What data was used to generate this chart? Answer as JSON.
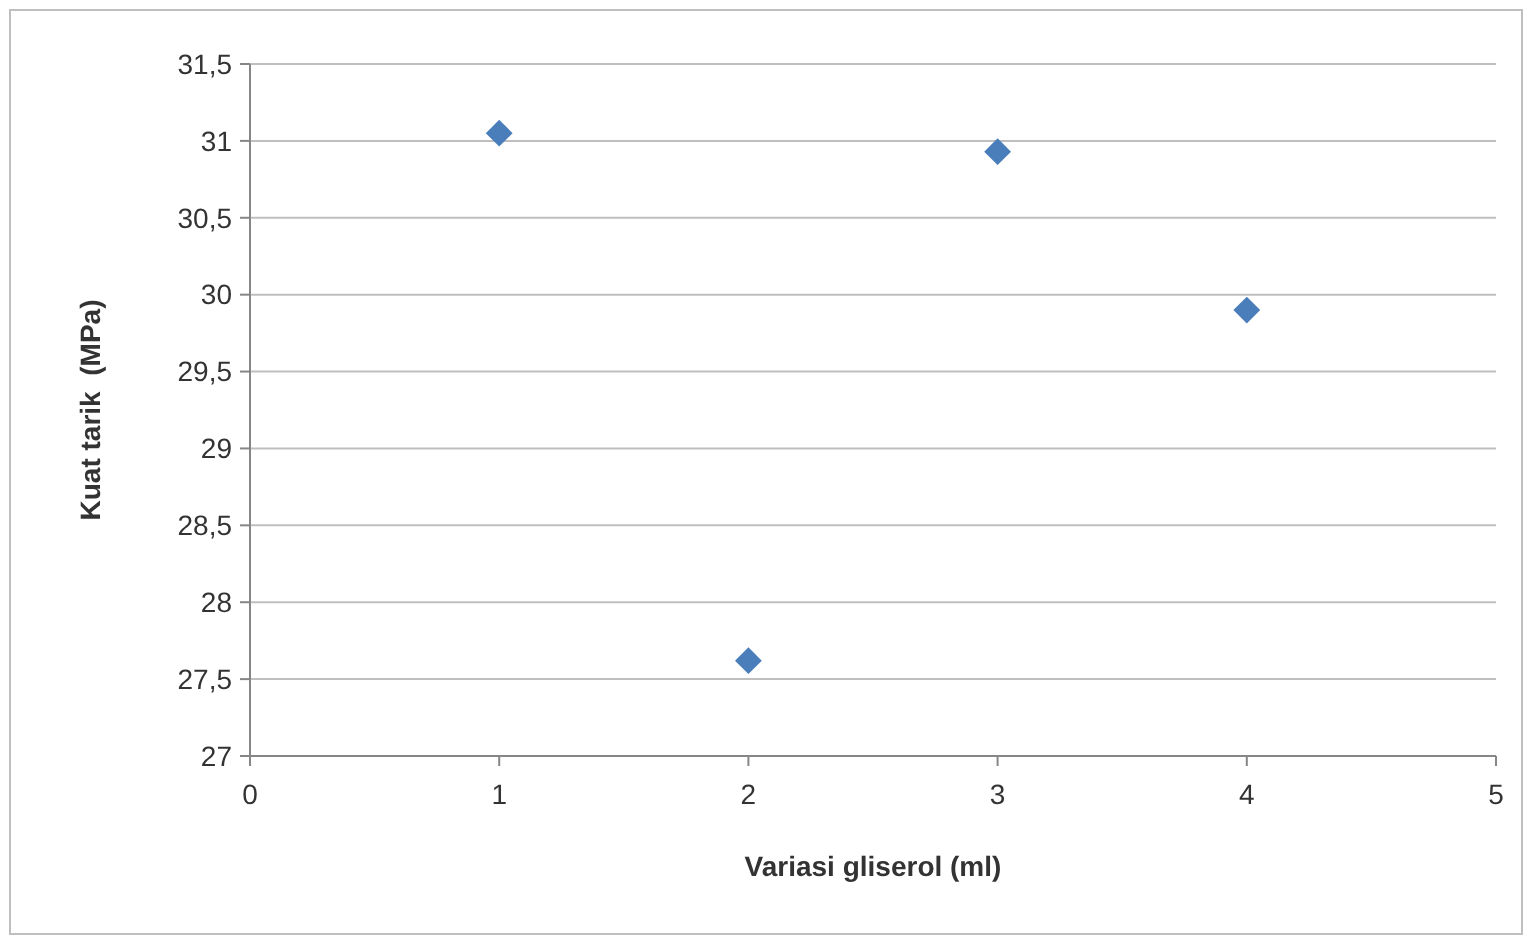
{
  "chart_data": {
    "type": "scatter",
    "xlabel": "Variasi gliserol (ml)",
    "ylabel": "Kuat tarik  (MPa)",
    "x": [
      1,
      2,
      3,
      4
    ],
    "series": [
      {
        "color": "#4a7ebb",
        "values": [
          31.05,
          27.62,
          30.93,
          29.9
        ]
      }
    ],
    "xlim": [
      0,
      5
    ],
    "xticks": [
      0,
      1,
      2,
      3,
      4,
      5
    ],
    "ylim": [
      27,
      31.5
    ],
    "yticks": [
      27,
      {
        "value": 27.5,
        "label": "27,5"
      },
      28,
      {
        "value": 28.5,
        "label": "28,5"
      },
      29,
      {
        "value": 29.5,
        "label": "29,5"
      },
      30,
      {
        "value": 30.5,
        "label": "30,5"
      },
      31,
      {
        "value": 31.5,
        "label": "31,5"
      }
    ],
    "grid": "y",
    "marker": "diamond"
  }
}
